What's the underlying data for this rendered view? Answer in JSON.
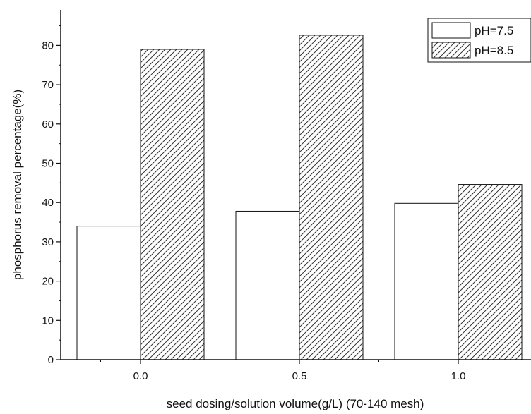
{
  "chart_data": {
    "type": "bar",
    "categories": [
      "0.0",
      "0.5",
      "1.0"
    ],
    "series": [
      {
        "name": "pH=7.5",
        "values": [
          34,
          37.8,
          39.8
        ],
        "pattern": "none"
      },
      {
        "name": "pH=8.5",
        "values": [
          79,
          82.6,
          44.6
        ],
        "pattern": "hatch"
      }
    ],
    "xlabel": "seed dosing/solution volume(g/L) (70-140 mesh)",
    "ylabel": "phosphorus removal percentage(%)",
    "ylim": [
      0,
      90
    ],
    "yticks": [
      0,
      10,
      20,
      30,
      40,
      50,
      60,
      70,
      80
    ],
    "grid": false,
    "legend_position": "top-right",
    "colors": {
      "bar_fill": "#ffffff",
      "stroke": "#111111",
      "hatch": "#333333"
    }
  }
}
